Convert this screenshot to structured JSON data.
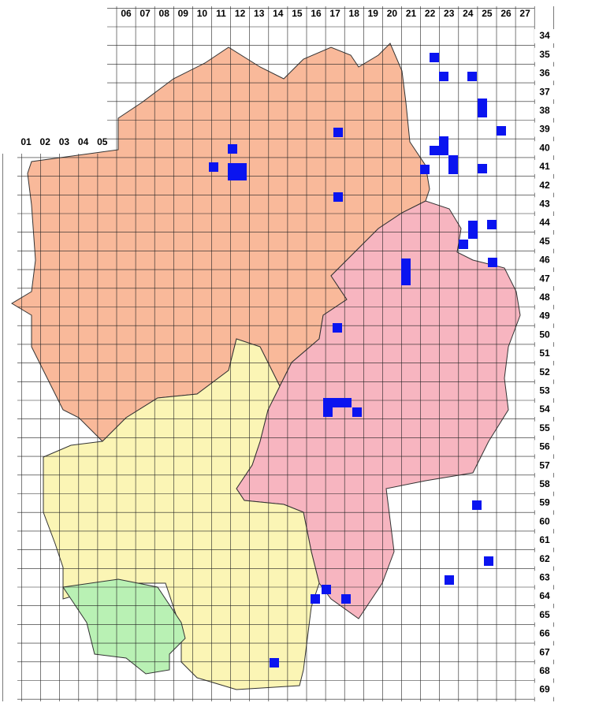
{
  "map": {
    "column_labels": [
      "01",
      "02",
      "03",
      "04",
      "05",
      "06",
      "07",
      "08",
      "09",
      "10",
      "11",
      "12",
      "13",
      "14",
      "15",
      "16",
      "17",
      "18",
      "19",
      "20",
      "21",
      "22",
      "23",
      "24",
      "25",
      "26",
      "27"
    ],
    "row_labels": [
      "34",
      "35",
      "36",
      "37",
      "38",
      "39",
      "40",
      "41",
      "42",
      "43",
      "44",
      "45",
      "46",
      "47",
      "48",
      "49",
      "50",
      "51",
      "52",
      "53",
      "54",
      "55",
      "56",
      "57",
      "58",
      "59",
      "60",
      "61",
      "62",
      "63",
      "64",
      "65",
      "66",
      "67",
      "68",
      "69"
    ]
  }
}
